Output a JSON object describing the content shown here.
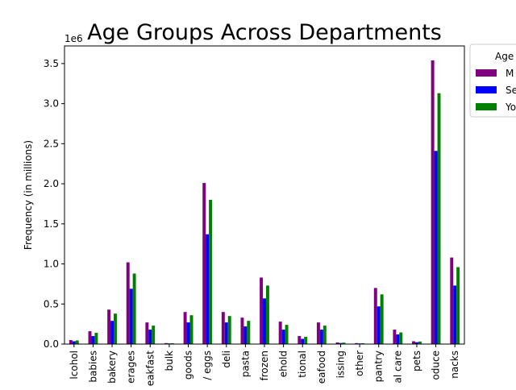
{
  "chart_data": {
    "type": "bar",
    "title": "Age Groups Across Departments",
    "xlabel": "",
    "ylabel": "Frequency (in millions)",
    "y_offset_label": "1e6",
    "ylim": [
      0,
      3720000
    ],
    "yticks": [
      0,
      500000,
      1000000,
      1500000,
      2000000,
      2500000,
      3000000,
      3500000
    ],
    "ytick_labels": [
      "0.0",
      "0.5",
      "1.0",
      "1.5",
      "2.0",
      "2.5",
      "3.0",
      "3.5"
    ],
    "grid": false,
    "legend": {
      "title": "Age",
      "placement": "outside-top-right"
    },
    "categories": [
      "lcohol",
      "babies",
      "bakery",
      "erages",
      "eakfast",
      "bulk",
      "goods",
      "/ eggs",
      "deli",
      "pasta",
      "frozen",
      "ehold",
      "tional",
      "eafood",
      "issing",
      "other",
      "pantry",
      "al care",
      "pets",
      "oduce",
      "nacks"
    ],
    "series": [
      {
        "name": "M",
        "color": "#800080",
        "values": [
          50000,
          160000,
          430000,
          1020000,
          270000,
          12000,
          400000,
          2010000,
          400000,
          330000,
          830000,
          280000,
          100000,
          270000,
          20000,
          12000,
          700000,
          180000,
          35000,
          3540000,
          1080000
        ]
      },
      {
        "name": "Se",
        "color": "#0000ff",
        "values": [
          35000,
          100000,
          290000,
          690000,
          180000,
          8000,
          270000,
          1370000,
          270000,
          220000,
          570000,
          180000,
          65000,
          180000,
          13000,
          8000,
          470000,
          120000,
          23000,
          2410000,
          730000
        ]
      },
      {
        "name": "Yo",
        "color": "#008000",
        "values": [
          45000,
          140000,
          380000,
          880000,
          230000,
          10000,
          360000,
          1800000,
          350000,
          290000,
          730000,
          240000,
          90000,
          230000,
          18000,
          10000,
          620000,
          145000,
          32000,
          3130000,
          960000
        ]
      }
    ]
  }
}
